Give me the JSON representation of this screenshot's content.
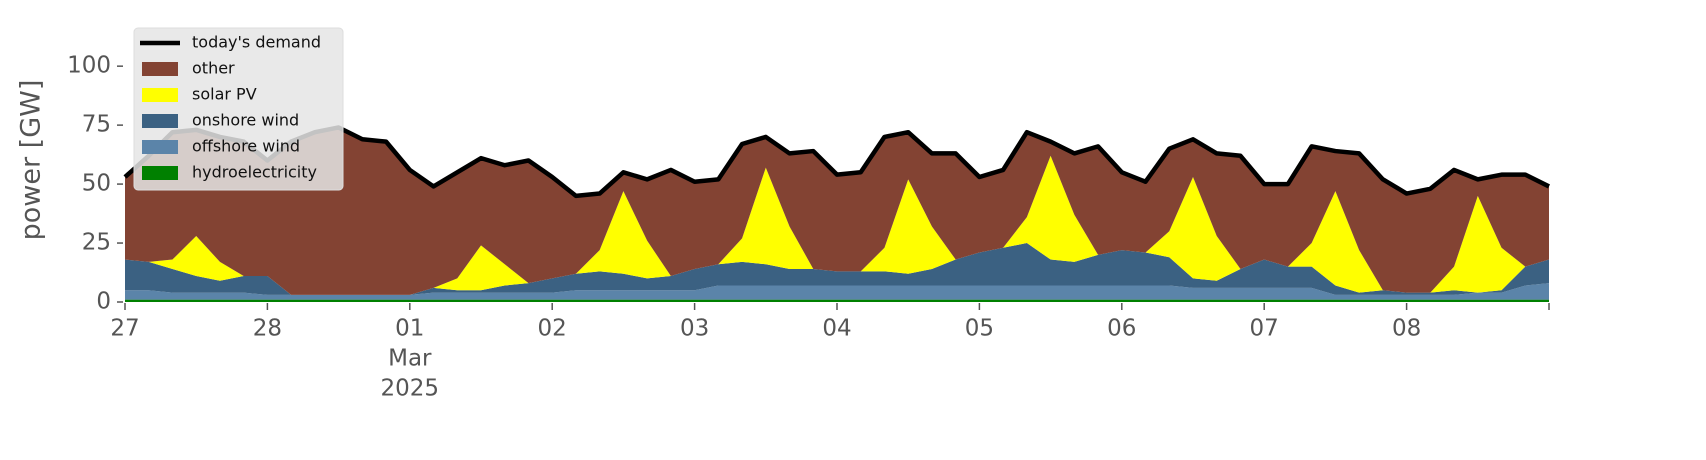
{
  "chart_data": {
    "type": "stacked_area",
    "y_label": "power [GW]",
    "x": [
      0,
      4,
      8,
      12,
      16,
      20,
      24,
      28,
      32,
      36,
      40,
      44,
      48,
      52,
      56,
      60,
      64,
      68,
      72,
      76,
      80,
      84,
      88,
      92,
      96,
      100,
      104,
      108,
      112,
      116,
      120,
      124,
      128,
      132,
      136,
      140,
      144,
      148,
      152,
      156,
      160,
      164,
      168,
      172,
      176,
      180,
      184,
      188,
      192,
      196,
      200,
      204,
      208,
      212,
      216,
      220,
      224,
      228,
      232,
      236,
      240
    ],
    "xlim": [
      0,
      240
    ],
    "xticks": [
      {
        "value": 0,
        "label": "27"
      },
      {
        "value": 24,
        "label": "28"
      },
      {
        "value": 48,
        "label": "01"
      },
      {
        "value": 72,
        "label": "02"
      },
      {
        "value": 96,
        "label": "03"
      },
      {
        "value": 120,
        "label": "04"
      },
      {
        "value": 144,
        "label": "05"
      },
      {
        "value": 168,
        "label": "06"
      },
      {
        "value": 192,
        "label": "07"
      },
      {
        "value": 216,
        "label": "08"
      }
    ],
    "x_month_label": "Mar",
    "x_year_label": "2025",
    "ylim": [
      0,
      120
    ],
    "yticks": [
      0,
      25,
      50,
      75,
      100
    ],
    "legend": "upper left",
    "line_series": {
      "name": "today's demand",
      "color": "#000000",
      "values": [
        53,
        62,
        72,
        73,
        70,
        68,
        60,
        68,
        72,
        74,
        69,
        68,
        56,
        49,
        55,
        61,
        58,
        60,
        53,
        45,
        46,
        55,
        52,
        56,
        51,
        52,
        67,
        70,
        63,
        64,
        54,
        55,
        70,
        72,
        63,
        63,
        53,
        56,
        72,
        68,
        63,
        66,
        55,
        51,
        65,
        69,
        63,
        62,
        50,
        50,
        66,
        64,
        63,
        52,
        46,
        48,
        56,
        52,
        54,
        54,
        49
      ]
    },
    "series": [
      {
        "name": "hydroelectricity",
        "color": "#008000",
        "values": [
          1,
          1,
          1,
          1,
          1,
          1,
          1,
          1,
          1,
          1,
          1,
          1,
          1,
          1,
          1,
          1,
          1,
          1,
          1,
          1,
          1,
          1,
          1,
          1,
          1,
          1,
          1,
          1,
          1,
          1,
          1,
          1,
          1,
          1,
          1,
          1,
          1,
          1,
          1,
          1,
          1,
          1,
          1,
          1,
          1,
          1,
          1,
          1,
          1,
          1,
          1,
          1,
          1,
          1,
          1,
          1,
          1,
          1,
          1,
          1,
          1
        ]
      },
      {
        "name": "offshore wind",
        "color": "#5b84a9",
        "values": [
          4,
          4,
          3,
          3,
          3,
          3,
          2,
          2,
          2,
          2,
          2,
          2,
          2,
          3,
          3,
          3,
          3,
          3,
          3,
          4,
          4,
          4,
          4,
          4,
          4,
          6,
          6,
          6,
          6,
          6,
          6,
          6,
          6,
          6,
          6,
          6,
          6,
          6,
          6,
          6,
          6,
          6,
          6,
          6,
          6,
          5,
          5,
          5,
          5,
          5,
          5,
          2,
          2,
          2,
          2,
          2,
          2,
          3,
          3,
          6,
          7
        ]
      },
      {
        "name": "onshore wind",
        "color": "#3b6182",
        "values": [
          13,
          12,
          10,
          7,
          5,
          7,
          8,
          0,
          0,
          0,
          0,
          0,
          0,
          2,
          1,
          1,
          3,
          4,
          6,
          7,
          8,
          7,
          5,
          6,
          9,
          9,
          10,
          9,
          7,
          7,
          6,
          6,
          6,
          5,
          7,
          11,
          14,
          16,
          18,
          11,
          10,
          13,
          15,
          14,
          12,
          4,
          3,
          8,
          12,
          9,
          9,
          4,
          1,
          2,
          1,
          1,
          2,
          0,
          1,
          8,
          10
        ]
      },
      {
        "name": "solar PV",
        "color": "#ffff00",
        "values": [
          0,
          0,
          4,
          17,
          8,
          0,
          0,
          0,
          0,
          0,
          0,
          0,
          0,
          0,
          5,
          19,
          9,
          0,
          0,
          0,
          9,
          35,
          16,
          0,
          0,
          0,
          10,
          41,
          18,
          0,
          0,
          0,
          10,
          40,
          18,
          0,
          0,
          0,
          11,
          44,
          20,
          0,
          0,
          0,
          11,
          43,
          19,
          0,
          0,
          0,
          10,
          40,
          18,
          0,
          0,
          0,
          10,
          41,
          18,
          0,
          0
        ]
      },
      {
        "name": "other",
        "color": "#834333",
        "values": [
          35,
          45,
          54,
          45,
          53,
          57,
          49,
          65,
          69,
          71,
          66,
          65,
          53,
          43,
          45,
          37,
          42,
          52,
          43,
          33,
          24,
          8,
          26,
          45,
          37,
          36,
          40,
          13,
          31,
          50,
          41,
          42,
          47,
          20,
          31,
          45,
          32,
          33,
          36,
          6,
          26,
          46,
          33,
          30,
          35,
          16,
          35,
          48,
          32,
          35,
          41,
          17,
          41,
          47,
          42,
          44,
          41,
          7,
          31,
          39,
          31
        ]
      }
    ]
  }
}
